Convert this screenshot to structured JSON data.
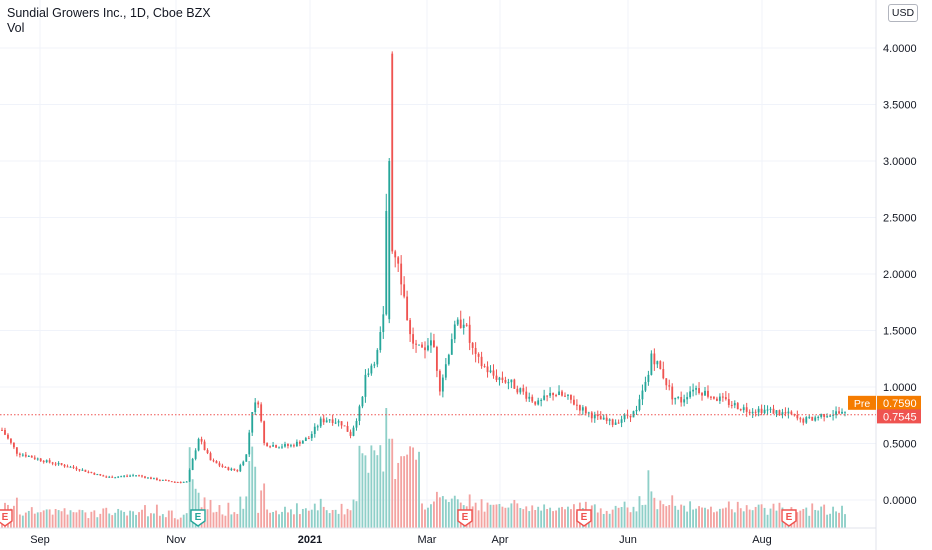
{
  "header": {
    "title": "Sundial Growers Inc., 1D, Cboe BZX",
    "volume_label": "Vol",
    "currency": "USD"
  },
  "colors": {
    "up": "#26a69a",
    "down": "#ef5350",
    "up_volume": "#8ecfc8",
    "down_volume": "#f3a3a1",
    "grid": "#f0f3fa",
    "axis_text": "#131722",
    "premarket": "#f57c00",
    "last_price": "#ef5350"
  },
  "chart_data": {
    "type": "candlestick",
    "y_axis": {
      "range": [
        -0.2,
        4.2
      ],
      "ticks": [
        "4.0000",
        "3.5000",
        "3.0000",
        "2.5000",
        "2.0000",
        "1.5000",
        "1.0000",
        "0.5000",
        "0.0000"
      ],
      "tick_values": [
        4.0,
        3.5,
        3.0,
        2.5,
        2.0,
        1.5,
        1.0,
        0.5,
        0.0
      ]
    },
    "x_axis": {
      "labels": [
        "Sep",
        "Nov",
        "2021",
        "Mar",
        "Apr",
        "Jun",
        "Aug"
      ],
      "bold_labels": [
        "2021"
      ]
    },
    "price_labels": [
      {
        "label": "Pre",
        "value": "0.7590",
        "color": "#f57c00"
      },
      {
        "label": "",
        "value": "0.7545",
        "color": "#ef5350"
      }
    ],
    "last_price": 0.7545,
    "earnings_markers": [
      {
        "label": "E",
        "color": "#ef5350"
      },
      {
        "label": "E",
        "color": "#26a69a"
      },
      {
        "label": "E",
        "color": "#ef5350"
      },
      {
        "label": "E",
        "color": "#ef5350"
      },
      {
        "label": "E",
        "color": "#ef5350"
      }
    ],
    "anchors": [
      [
        0,
        0.62
      ],
      [
        5,
        0.42
      ],
      [
        15,
        0.34
      ],
      [
        25,
        0.28
      ],
      [
        30,
        0.24
      ],
      [
        35,
        0.2
      ],
      [
        45,
        0.22
      ],
      [
        52,
        0.18
      ],
      [
        58,
        0.16
      ],
      [
        62,
        0.16
      ],
      [
        66,
        0.55
      ],
      [
        70,
        0.35
      ],
      [
        75,
        0.28
      ],
      [
        79,
        0.26
      ],
      [
        82,
        0.4
      ],
      [
        84,
        0.8
      ],
      [
        86,
        0.88
      ],
      [
        88,
        0.5
      ],
      [
        92,
        0.48
      ],
      [
        97,
        0.48
      ],
      [
        103,
        0.55
      ],
      [
        107,
        0.7
      ],
      [
        110,
        0.72
      ],
      [
        114,
        0.68
      ],
      [
        117,
        0.58
      ],
      [
        120,
        0.8
      ],
      [
        122,
        1.1
      ],
      [
        124,
        1.2
      ],
      [
        126,
        1.3
      ],
      [
        128,
        1.6
      ],
      [
        129,
        2.5
      ],
      [
        130,
        3.0
      ],
      [
        131,
        2.2
      ],
      [
        133,
        2.15
      ],
      [
        135,
        1.8
      ],
      [
        137,
        1.45
      ],
      [
        139,
        1.35
      ],
      [
        141,
        1.3
      ],
      [
        143,
        1.4
      ],
      [
        145,
        1.35
      ],
      [
        147,
        1.0
      ],
      [
        149,
        1.2
      ],
      [
        151,
        1.45
      ],
      [
        153,
        1.55
      ],
      [
        155,
        1.6
      ],
      [
        157,
        1.4
      ],
      [
        159,
        1.25
      ],
      [
        161,
        1.2
      ],
      [
        165,
        1.1
      ],
      [
        170,
        1.05
      ],
      [
        175,
        0.95
      ],
      [
        180,
        0.85
      ],
      [
        185,
        0.95
      ],
      [
        190,
        0.9
      ],
      [
        195,
        0.8
      ],
      [
        200,
        0.72
      ],
      [
        205,
        0.68
      ],
      [
        210,
        0.75
      ],
      [
        213,
        0.78
      ],
      [
        215,
        0.95
      ],
      [
        217,
        1.1
      ],
      [
        218,
        1.3
      ],
      [
        220,
        1.2
      ],
      [
        222,
        1.1
      ],
      [
        225,
        0.92
      ],
      [
        228,
        0.88
      ],
      [
        232,
        1.0
      ],
      [
        236,
        0.95
      ],
      [
        240,
        0.9
      ],
      [
        245,
        0.85
      ],
      [
        250,
        0.8
      ],
      [
        255,
        0.8
      ],
      [
        260,
        0.78
      ],
      [
        265,
        0.75
      ],
      [
        268,
        0.7
      ],
      [
        272,
        0.72
      ],
      [
        276,
        0.76
      ],
      [
        280,
        0.77
      ],
      [
        283,
        0.76
      ]
    ]
  }
}
